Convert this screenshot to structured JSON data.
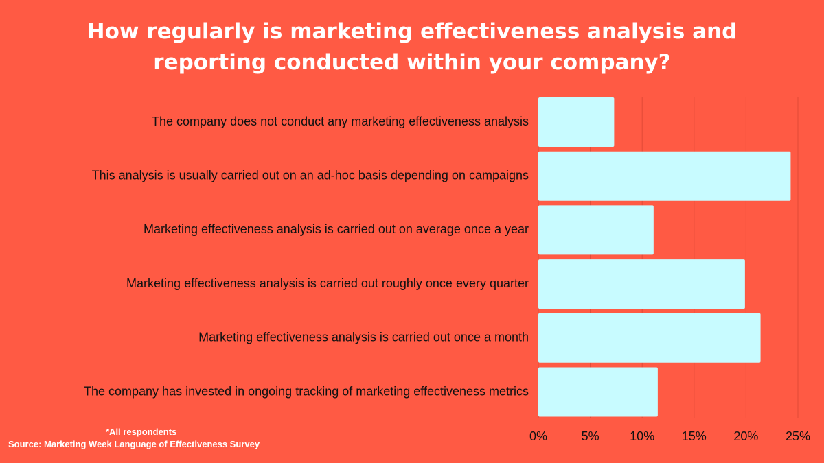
{
  "title": {
    "line1": "How regularly is marketing effectiveness analysis and",
    "line2": "reporting conducted within your company?"
  },
  "footer": {
    "note": "*All respondents",
    "source": "Source: Marketing Week Language of Effectiveness Survey"
  },
  "colors": {
    "background": "#ff5a44",
    "bar": "#c8fbff",
    "grid": "#e04a36",
    "text_dark": "#111111",
    "text_light": "#ffffff"
  },
  "chart_data": {
    "type": "bar",
    "orientation": "horizontal",
    "categories": [
      "The company does not conduct any marketing effectiveness analysis",
      "This analysis is usually carried out on an ad-hoc basis depending on campaigns",
      "Marketing effectiveness analysis is carried out on average once a year",
      "Marketing effectiveness analysis is carried out roughly once every quarter",
      "Marketing effectiveness analysis is carried out once a month",
      "The company has invested in ongoing tracking of marketing effectiveness metrics"
    ],
    "values": [
      7.3,
      24.3,
      11.1,
      19.9,
      21.4,
      11.5
    ],
    "xlim": [
      0,
      25
    ],
    "xticks": [
      "0%",
      "5%",
      "10%",
      "15%",
      "20%",
      "25%"
    ],
    "xtick_values": [
      0,
      5,
      10,
      15,
      20,
      25
    ],
    "title": "How regularly is marketing effectiveness analysis and reporting conducted within your company?",
    "xlabel": "",
    "ylabel": "",
    "grid": true,
    "legend": "none"
  }
}
